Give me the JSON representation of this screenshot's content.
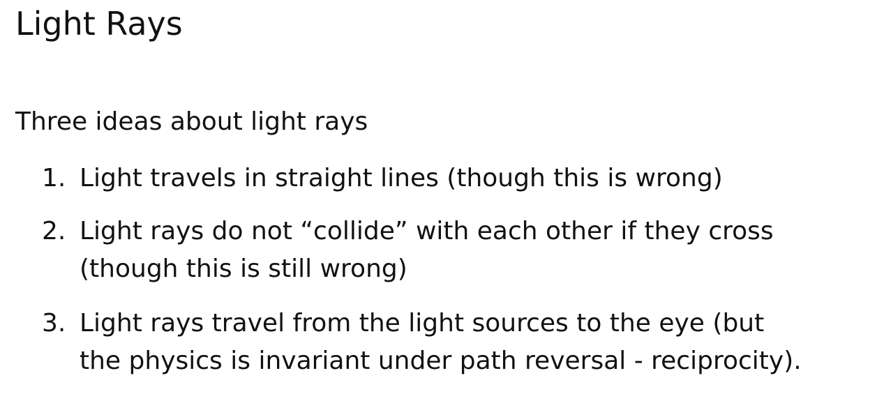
{
  "slide": {
    "title": "Light Rays",
    "intro": "Three ideas about light rays",
    "items": [
      {
        "number": "1.",
        "lines": [
          "Light travels in straight lines (though this is wrong)"
        ]
      },
      {
        "number": "2.",
        "lines": [
          "Light rays do not “collide” with each other if they cross",
          "(though this is still wrong)"
        ]
      },
      {
        "number": "3.",
        "lines": [
          "Light rays travel from the light sources to the eye (but",
          "the physics is invariant under path reversal - reciprocity)."
        ]
      }
    ]
  }
}
